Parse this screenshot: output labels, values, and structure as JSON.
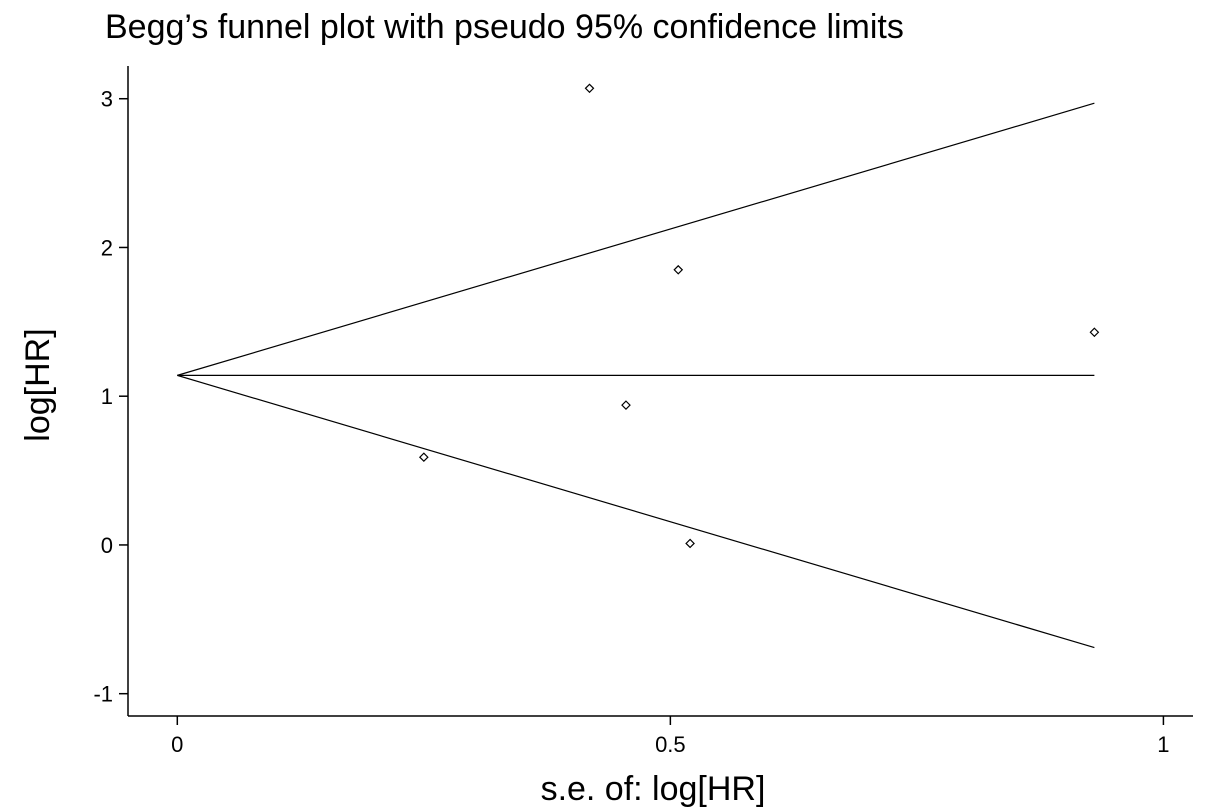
{
  "chart_data": {
    "type": "scatter",
    "title": "Begg’s funnel plot with pseudo 95% confidence limits",
    "xlabel": "s.e. of: log[HR]",
    "ylabel": "log[HR]",
    "xlim": [
      -0.05,
      1.03
    ],
    "ylim": [
      -1.15,
      3.22
    ],
    "x_ticks": [
      0,
      0.5,
      1
    ],
    "x_tick_labels": [
      "0",
      "0.5",
      "1"
    ],
    "y_ticks": [
      -1,
      0,
      1,
      2,
      3
    ],
    "y_tick_labels": [
      "-1",
      "0",
      "1",
      "2",
      "3"
    ],
    "grid": false,
    "series": [
      {
        "type": "scatter",
        "marker": "diamond",
        "points": [
          {
            "x": 0.25,
            "y": 0.59
          },
          {
            "x": 0.418,
            "y": 3.07
          },
          {
            "x": 0.455,
            "y": 0.94
          },
          {
            "x": 0.508,
            "y": 1.85
          },
          {
            "x": 0.52,
            "y": 0.01
          },
          {
            "x": 0.93,
            "y": 1.43
          }
        ]
      }
    ],
    "reference_lines": {
      "pooled_estimate": 1.14,
      "x_start": 0,
      "x_end": 0.93,
      "upper_limit_at_end": 2.97,
      "lower_limit_at_end": -0.69
    }
  }
}
